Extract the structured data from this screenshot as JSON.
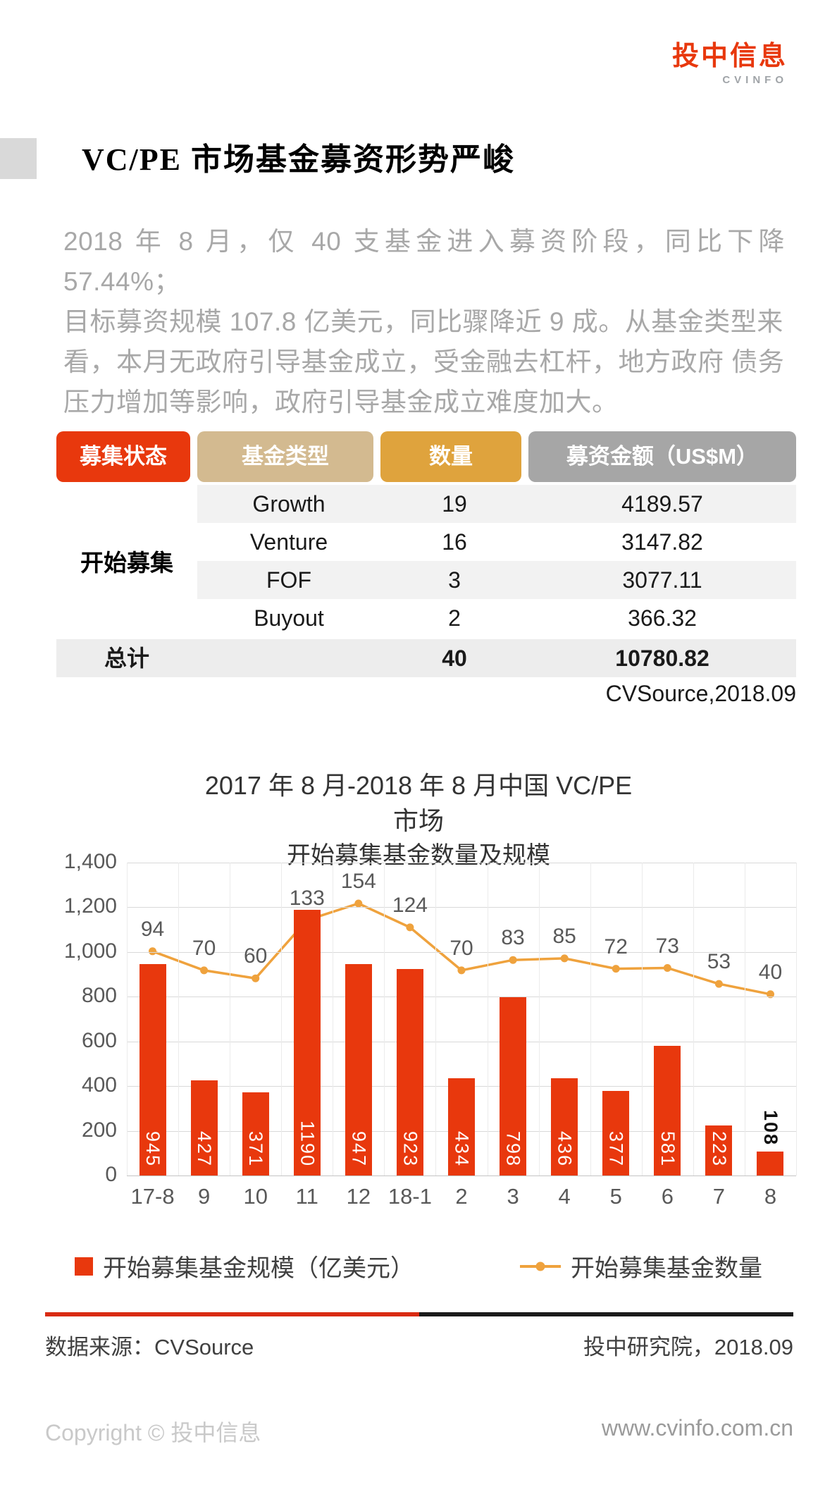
{
  "page": {
    "logo": {
      "brand": "投中信息",
      "sub": "CVINFO"
    },
    "title": "VC/PE 市场基金募资形势严峻",
    "paragraph": "2018 年 8 月，仅 40 支基金进入募资阶段，同比下降 57.44%；\n目标募资规模 107.8 亿美元，同比骤降近 9 成。从基金类型来\n看，本月无政府引导基金成立，受金融去杠杆，地方政府 债务\n压力增加等影响，政府引导基金成立难度加大。",
    "colors": {
      "red": "#e8380d",
      "tan": "#d3ba90",
      "gold": "#dfa33d",
      "grayhead": "#a6a6a6",
      "bar": "#e8380d",
      "line": "#efa23d",
      "divider_red": "#d92b12"
    }
  },
  "table": {
    "headers": [
      "募集状态",
      "基金类型",
      "数量",
      "募资金额（US$M）"
    ],
    "row_group_label": "开始募集",
    "rows": [
      {
        "type": "Growth",
        "count": "19",
        "amount": "4189.57"
      },
      {
        "type": "Venture",
        "count": "16",
        "amount": "3147.82"
      },
      {
        "type": "FOF",
        "count": "3",
        "amount": "3077.11"
      },
      {
        "type": "Buyout",
        "count": "2",
        "amount": "366.32"
      }
    ],
    "total": {
      "label": "总计",
      "count": "40",
      "amount": "10780.82"
    },
    "caption": "CVSource,2018.09"
  },
  "chart_data": {
    "type": "bar+line",
    "title_lines": [
      "2017 年 8 月-2018 年 8 月中国 VC/PE",
      "市场"
    ],
    "subtitle": "开始募集基金数量及规模",
    "categories": [
      "17-8",
      "9",
      "10",
      "11",
      "12",
      "18-1",
      "2",
      "3",
      "4",
      "5",
      "6",
      "7",
      "8"
    ],
    "series": [
      {
        "name": "开始募集基金规模（亿美元）",
        "type": "bar",
        "color": "#e8380d",
        "values": [
          945,
          427,
          371,
          1190,
          947,
          923,
          434,
          798,
          436,
          377,
          581,
          223,
          108
        ]
      },
      {
        "name": "开始募集基金数量",
        "type": "line",
        "color": "#efa23d",
        "values": [
          94,
          70,
          60,
          133,
          154,
          124,
          70,
          83,
          85,
          72,
          73,
          53,
          40
        ]
      }
    ],
    "ylim": [
      0,
      1400
    ],
    "yticks": [
      "1,400",
      "1,200",
      "1,000",
      "800",
      "600",
      "400",
      "200",
      "0"
    ],
    "grid": true,
    "legend_position": "bottom"
  },
  "footer": {
    "source": "数据来源：CVSource",
    "attribution": "投中研究院，2018.09",
    "copyright": "Copyright © 投中信息",
    "website": "www.cvinfo.com.cn"
  }
}
